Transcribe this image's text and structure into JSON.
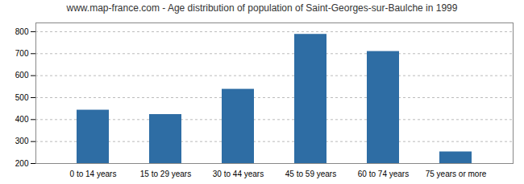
{
  "chart_data": {
    "type": "bar",
    "title": "www.map-france.com - Age distribution of population of Saint-Georges-sur-Baulche in 1999",
    "categories": [
      "0 to 14 years",
      "15 to 29 years",
      "30 to 44 years",
      "45 to 59 years",
      "60 to 74 years",
      "75 years or more"
    ],
    "values": [
      443,
      423,
      538,
      788,
      710,
      253
    ],
    "color": "#2e6da4",
    "ylim": [
      200,
      840
    ],
    "yticks": [
      200,
      300,
      400,
      500,
      600,
      700,
      800
    ],
    "grid": true
  }
}
